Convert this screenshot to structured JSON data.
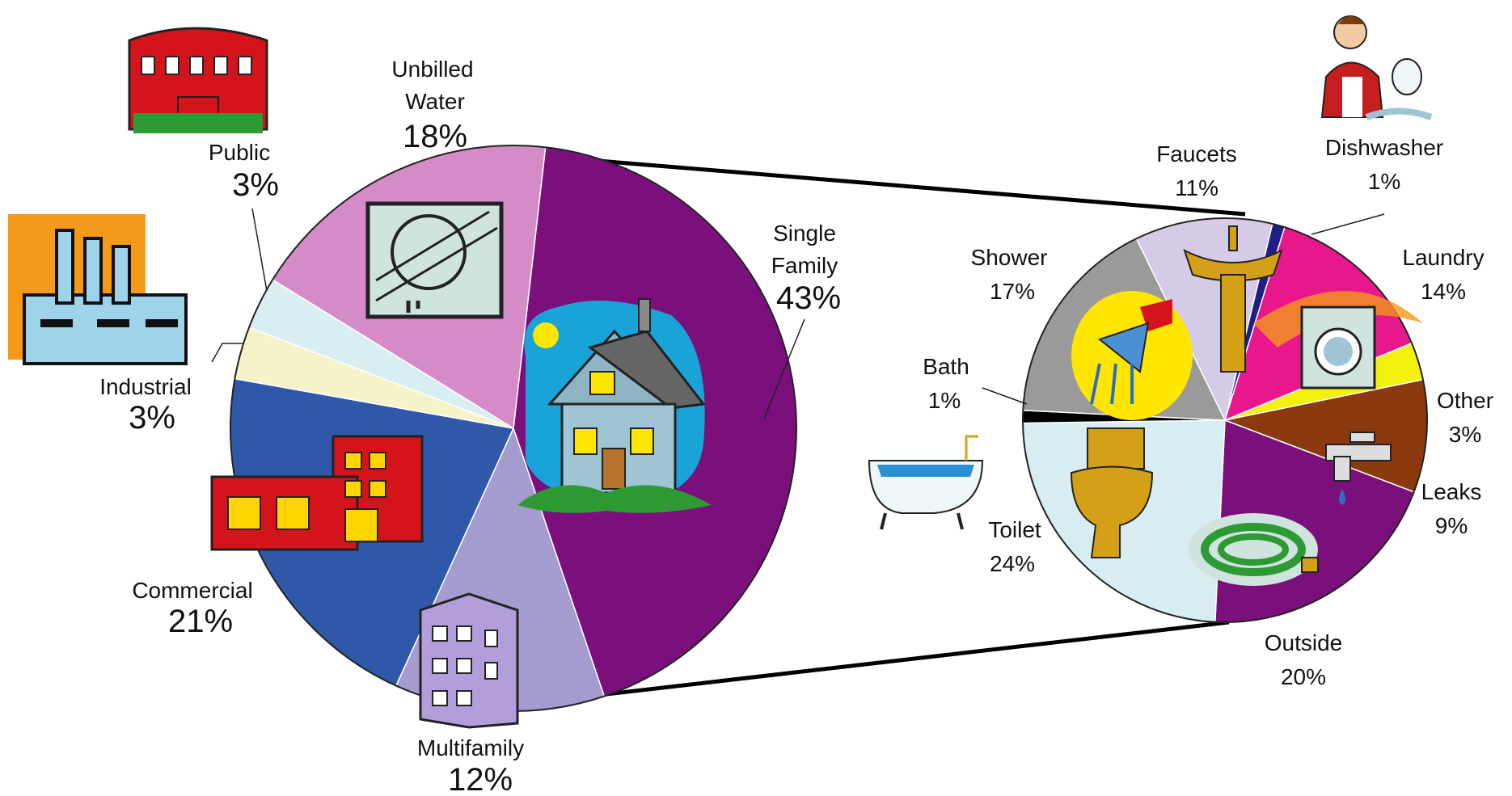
{
  "chart_data": [
    {
      "type": "pie",
      "title": "",
      "slices": [
        {
          "name": "Single Family",
          "value": 43,
          "label": "43%",
          "color": "#7b0f7b",
          "icon": "house-icon"
        },
        {
          "name": "Multifamily",
          "value": 12,
          "label": "12%",
          "color": "#a49bcf",
          "icon": "apartment-building-icon"
        },
        {
          "name": "Commercial",
          "value": 21,
          "label": "21%",
          "color": "#2f58a8",
          "icon": "commercial-building-icon"
        },
        {
          "name": "Industrial",
          "value": 3,
          "label": "3%",
          "color": "#f6f3c8",
          "icon": "factory-icon"
        },
        {
          "name": "Public",
          "value": 3,
          "label": "3%",
          "color": "#d9eef3",
          "icon": "public-building-icon"
        },
        {
          "name": "Unbilled Water",
          "value": 18,
          "label": "18%",
          "color": "#d48bc8",
          "icon": "leaking-pipe-icon"
        }
      ]
    },
    {
      "type": "pie",
      "title": "",
      "breakdown_of": "Single Family",
      "slices": [
        {
          "name": "Faucets",
          "value": 11,
          "label": "11%",
          "color": "#d5cbe6",
          "icon": "faucet-sink-icon"
        },
        {
          "name": "Dishwasher",
          "value": 1,
          "label": "1%",
          "color": "#1e1e86",
          "icon": "dishwashing-person-icon"
        },
        {
          "name": "Laundry",
          "value": 14,
          "label": "14%",
          "color": "#e8178c",
          "icon": "washing-machine-icon"
        },
        {
          "name": "Other",
          "value": 3,
          "label": "3%",
          "color": "#f4f00e",
          "icon": ""
        },
        {
          "name": "Leaks",
          "value": 9,
          "label": "9%",
          "color": "#8b3a10",
          "icon": "dripping-tap-icon"
        },
        {
          "name": "Outside",
          "value": 20,
          "label": "20%",
          "color": "#7b0f7b",
          "icon": "garden-hose-icon"
        },
        {
          "name": "Toilet",
          "value": 24,
          "label": "24%",
          "color": "#d7edf2",
          "icon": "toilet-icon"
        },
        {
          "name": "Bath",
          "value": 1,
          "label": "1%",
          "color": "#000000",
          "icon": "bathtub-icon"
        },
        {
          "name": "Shower",
          "value": 17,
          "label": "17%",
          "color": "#9a9a9a",
          "icon": "shower-head-icon"
        }
      ]
    }
  ],
  "labels": {
    "single_family_name_1": "Single",
    "single_family_name_2": "Family",
    "single_family_pct": "43%",
    "multifamily_name": "Multifamily",
    "multifamily_pct": "12%",
    "commercial_name": "Commercial",
    "commercial_pct": "21%",
    "industrial_name": "Industrial",
    "industrial_pct": "3%",
    "public_name": "Public",
    "public_pct": "3%",
    "unbilled_name_1": "Unbilled",
    "unbilled_name_2": "Water",
    "unbilled_pct": "18%",
    "faucets_name": "Faucets",
    "faucets_pct": "11%",
    "dishwasher_name": "Dishwasher",
    "dishwasher_pct": "1%",
    "laundry_name": "Laundry",
    "laundry_pct": "14%",
    "other_name": "Other",
    "other_pct": "3%",
    "leaks_name": "Leaks",
    "leaks_pct": "9%",
    "outside_name": "Outside",
    "outside_pct": "20%",
    "toilet_name": "Toilet",
    "toilet_pct": "24%",
    "bath_name": "Bath",
    "bath_pct": "1%",
    "shower_name": "Shower",
    "shower_pct": "17%"
  }
}
